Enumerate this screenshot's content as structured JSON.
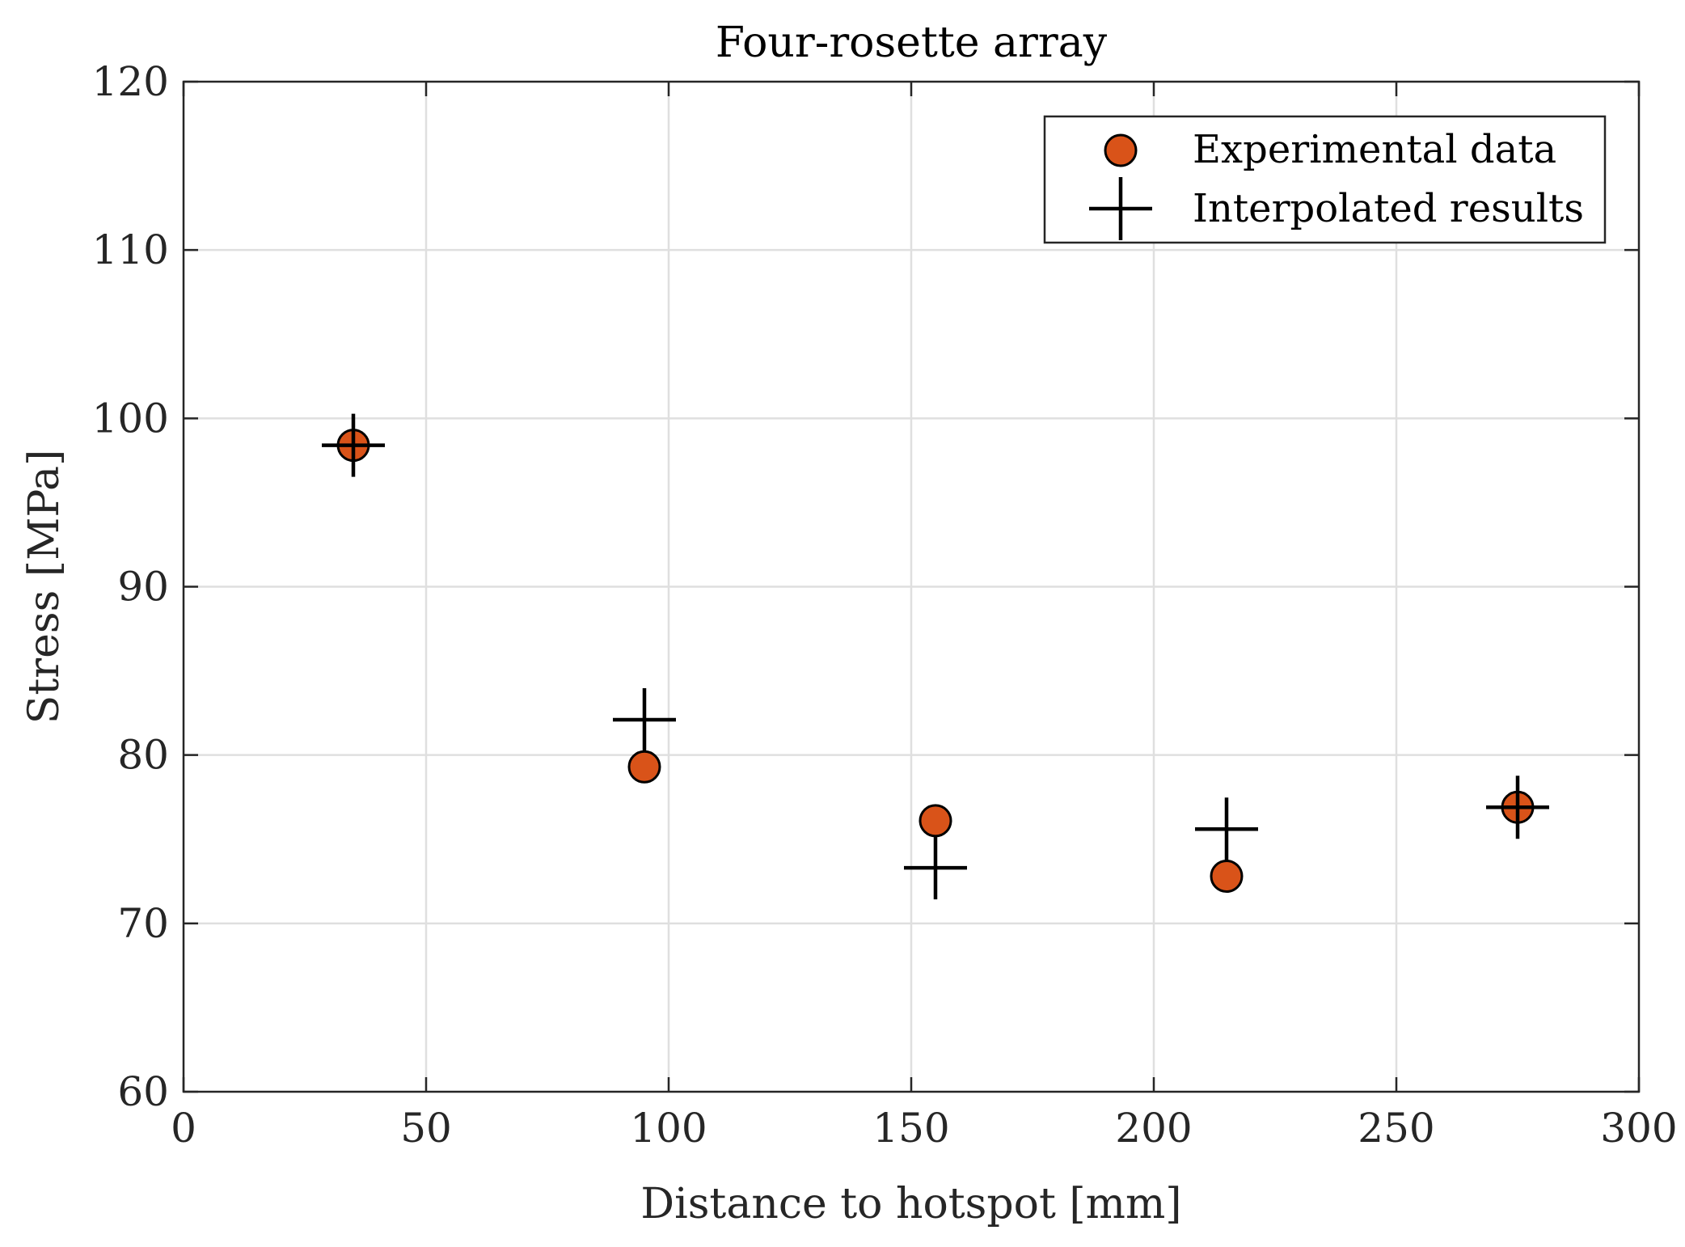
{
  "chart_data": {
    "type": "scatter",
    "title": "Four-rosette array",
    "xlabel": "Distance to hotspot [mm]",
    "ylabel": "Stress [MPa]",
    "xlim": [
      0,
      300
    ],
    "ylim": [
      60,
      120
    ],
    "xticks": [
      0,
      50,
      100,
      150,
      200,
      250,
      300
    ],
    "yticks": [
      60,
      70,
      80,
      90,
      100,
      110,
      120
    ],
    "grid": true,
    "legend_position": "top-right",
    "series": [
      {
        "name": "Experimental data",
        "marker": "circle",
        "color": "#D95319",
        "x": [
          35,
          95,
          155,
          215,
          275
        ],
        "y": [
          98.4,
          79.3,
          76.1,
          72.8,
          76.9
        ]
      },
      {
        "name": "Interpolated results",
        "marker": "plus",
        "color": "#000000",
        "x": [
          35,
          95,
          155,
          215,
          275
        ],
        "y": [
          98.4,
          82.1,
          73.3,
          75.6,
          76.9
        ]
      }
    ]
  }
}
